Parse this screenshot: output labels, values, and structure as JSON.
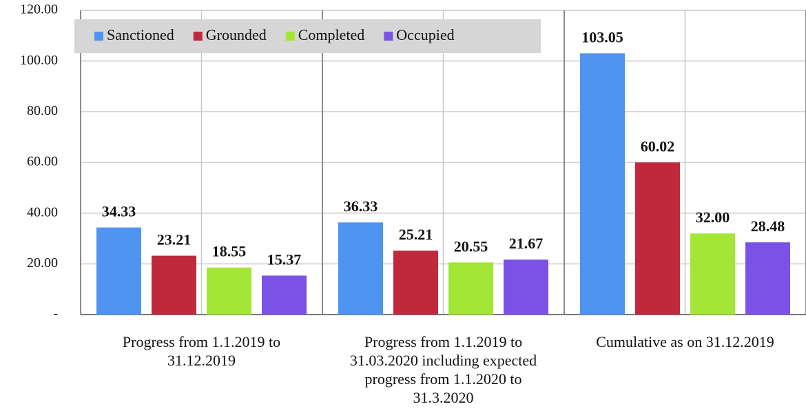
{
  "chart_data": {
    "type": "bar",
    "categories": [
      "Progress from 1.1.2019 to 31.12.2019",
      "Progress from 1.1.2019 to 31.03.2020 including expected progress from 1.1.2020 to 31.3.2020",
      "Cumulative as on 31.12.2019"
    ],
    "series": [
      {
        "name": "Sanctioned",
        "color": "#4f94f0",
        "values": [
          34.33,
          36.33,
          103.05
        ],
        "value_labels": [
          "34.33",
          "36.33",
          "103.05"
        ]
      },
      {
        "name": "Grounded",
        "color": "#c0283c",
        "values": [
          23.21,
          25.21,
          60.02
        ],
        "value_labels": [
          "23.21",
          "25.21",
          "60.02"
        ]
      },
      {
        "name": "Completed",
        "color": "#a4e635",
        "values": [
          18.55,
          20.55,
          32.0
        ],
        "value_labels": [
          "18.55",
          "20.55",
          "32.00"
        ]
      },
      {
        "name": "Occupied",
        "color": "#7b52e6",
        "values": [
          15.37,
          21.67,
          28.48
        ],
        "value_labels": [
          "15.37",
          "21.67",
          "28.48"
        ]
      }
    ],
    "ylim": [
      0,
      120
    ],
    "yticks": [
      {
        "value": 0,
        "label": "-"
      },
      {
        "value": 20,
        "label": "20.00"
      },
      {
        "value": 40,
        "label": "40.00"
      },
      {
        "value": 60,
        "label": "60.00"
      },
      {
        "value": 80,
        "label": "80.00"
      },
      {
        "value": 100,
        "label": "100.00"
      },
      {
        "value": 120,
        "label": "120.00"
      }
    ],
    "grid": true,
    "legend": "top-left"
  }
}
